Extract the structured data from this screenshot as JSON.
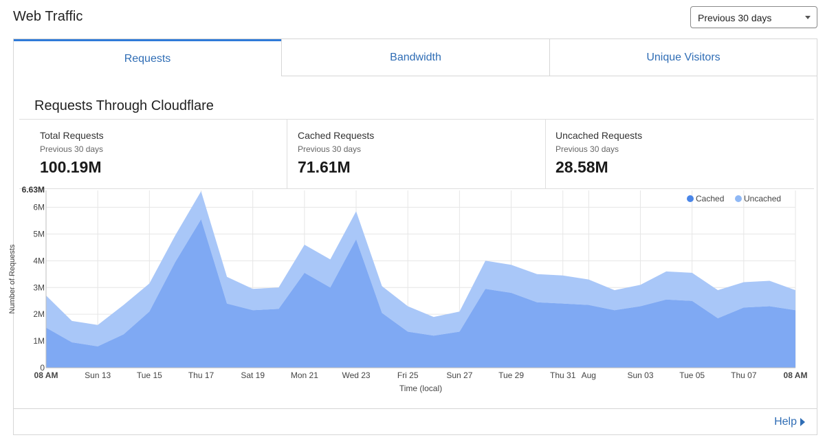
{
  "page": {
    "title": "Web Traffic"
  },
  "range_select": {
    "value": "Previous 30 days"
  },
  "tabs": [
    {
      "label": "Requests",
      "active": true
    },
    {
      "label": "Bandwidth",
      "active": false
    },
    {
      "label": "Unique Visitors",
      "active": false
    }
  ],
  "section": {
    "title": "Requests Through Cloudflare"
  },
  "stats": [
    {
      "label": "Total Requests",
      "sub": "Previous 30 days",
      "value": "100.19M"
    },
    {
      "label": "Cached Requests",
      "sub": "Previous 30 days",
      "value": "71.61M"
    },
    {
      "label": "Uncached Requests",
      "sub": "Previous 30 days",
      "value": "28.58M"
    }
  ],
  "footer": {
    "help_label": "Help"
  },
  "colors": {
    "cached": "#7fa9f3",
    "uncached": "#a9c7f8",
    "legend_cached": "#4a86e8",
    "legend_uncached": "#8fb8f5",
    "tab_text": "#2f6db5",
    "tab_border": "#2f7bd8"
  },
  "chart_data": {
    "type": "area",
    "stacked": true,
    "ylabel": "Number of Requests",
    "xlabel": "Time (local)",
    "ylim": [
      0,
      6.63
    ],
    "y_unit": "M",
    "y_ticks": [
      0,
      1,
      2,
      3,
      4,
      5,
      6
    ],
    "y_tick_labels": [
      "0",
      "1M",
      "2M",
      "3M",
      "4M",
      "5M",
      "6M"
    ],
    "y_max_label": "6.63M",
    "x_count": 59,
    "x_ticks": [
      {
        "i": 0,
        "label": "08 AM",
        "bold": true
      },
      {
        "i": 4,
        "label": "Sun 13"
      },
      {
        "i": 8,
        "label": "Tue 15"
      },
      {
        "i": 12,
        "label": "Thu 17"
      },
      {
        "i": 16,
        "label": "Sat 19"
      },
      {
        "i": 20,
        "label": "Mon 21"
      },
      {
        "i": 24,
        "label": "Wed 23"
      },
      {
        "i": 28,
        "label": "Fri 25"
      },
      {
        "i": 32,
        "label": "Sun 27"
      },
      {
        "i": 36,
        "label": "Tue 29"
      },
      {
        "i": 40,
        "label": "Thu 31"
      },
      {
        "i": 42,
        "label": "Aug"
      },
      {
        "i": 46,
        "label": "Sun 03"
      },
      {
        "i": 50,
        "label": "Tue 05"
      },
      {
        "i": 54,
        "label": "Thu 07"
      },
      {
        "i": 58,
        "label": "08 AM",
        "bold": true
      }
    ],
    "legend": [
      "Cached",
      "Uncached"
    ],
    "series": [
      {
        "name": "Cached",
        "points": [
          [
            0,
            1.5
          ],
          [
            2,
            0.95
          ],
          [
            4,
            0.8
          ],
          [
            6,
            1.25
          ],
          [
            8,
            2.1
          ],
          [
            10,
            3.95
          ],
          [
            12,
            5.55
          ],
          [
            14,
            2.4
          ],
          [
            16,
            2.15
          ],
          [
            18,
            2.2
          ],
          [
            20,
            3.55
          ],
          [
            22,
            3.0
          ],
          [
            24,
            4.8
          ],
          [
            26,
            2.05
          ],
          [
            28,
            1.35
          ],
          [
            30,
            1.2
          ],
          [
            32,
            1.35
          ],
          [
            34,
            2.95
          ],
          [
            36,
            2.8
          ],
          [
            38,
            2.45
          ],
          [
            40,
            2.4
          ],
          [
            42,
            2.35
          ],
          [
            44,
            2.15
          ],
          [
            46,
            2.3
          ],
          [
            48,
            2.55
          ],
          [
            50,
            2.5
          ],
          [
            52,
            1.85
          ],
          [
            54,
            2.25
          ],
          [
            56,
            2.3
          ],
          [
            58,
            2.15
          ]
        ]
      },
      {
        "name": "Uncached",
        "points": [
          [
            0,
            1.2
          ],
          [
            2,
            0.8
          ],
          [
            4,
            0.8
          ],
          [
            6,
            1.1
          ],
          [
            8,
            1.05
          ],
          [
            10,
            1.0
          ],
          [
            12,
            1.05
          ],
          [
            14,
            1.0
          ],
          [
            16,
            0.8
          ],
          [
            18,
            0.8
          ],
          [
            20,
            1.05
          ],
          [
            22,
            1.05
          ],
          [
            24,
            1.05
          ],
          [
            26,
            1.0
          ],
          [
            28,
            0.95
          ],
          [
            30,
            0.7
          ],
          [
            32,
            0.75
          ],
          [
            34,
            1.05
          ],
          [
            36,
            1.05
          ],
          [
            38,
            1.05
          ],
          [
            40,
            1.05
          ],
          [
            42,
            0.95
          ],
          [
            44,
            0.75
          ],
          [
            46,
            0.8
          ],
          [
            48,
            1.05
          ],
          [
            50,
            1.05
          ],
          [
            52,
            1.05
          ],
          [
            54,
            0.95
          ],
          [
            56,
            0.95
          ],
          [
            58,
            0.75
          ]
        ]
      }
    ]
  }
}
